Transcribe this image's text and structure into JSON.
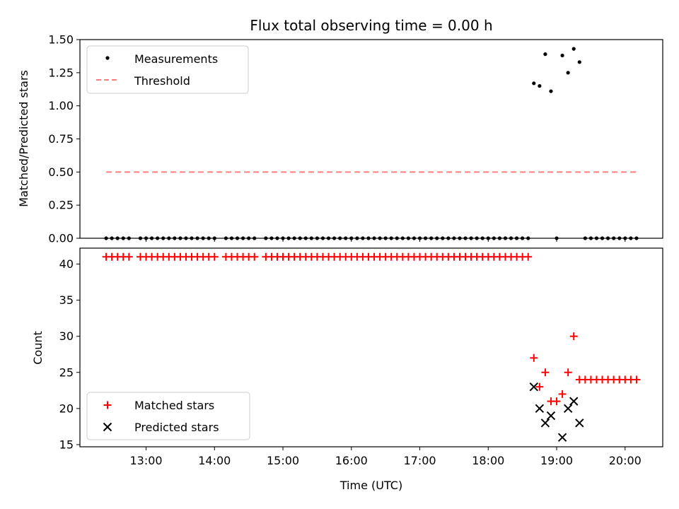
{
  "chart_data": [
    {
      "type": "scatter",
      "title": "Flux total observing time = 0.00 h",
      "xlabel": "",
      "ylabel": "Matched/Predicted stars",
      "ylim": [
        0,
        1.5
      ],
      "yticks": [
        "0.00",
        "0.25",
        "0.50",
        "0.75",
        "1.00",
        "1.25",
        "1.50"
      ],
      "legend_position": "top-left",
      "series": [
        {
          "name": "Measurements",
          "marker": "dot",
          "color": "#000000",
          "x": [
            "12:25",
            "12:30",
            "12:35",
            "12:40",
            "12:45",
            "12:55",
            "13:00",
            "13:05",
            "13:10",
            "13:15",
            "13:20",
            "13:25",
            "13:30",
            "13:35",
            "13:40",
            "13:45",
            "13:50",
            "13:55",
            "14:00",
            "14:10",
            "14:15",
            "14:20",
            "14:25",
            "14:30",
            "14:35",
            "14:45",
            "14:50",
            "14:55",
            "15:00",
            "15:05",
            "15:10",
            "15:15",
            "15:20",
            "15:25",
            "15:30",
            "15:35",
            "15:40",
            "15:45",
            "15:50",
            "15:55",
            "16:00",
            "16:05",
            "16:10",
            "16:15",
            "16:20",
            "16:25",
            "16:30",
            "16:35",
            "16:40",
            "16:45",
            "16:50",
            "16:55",
            "17:00",
            "17:05",
            "17:10",
            "17:15",
            "17:20",
            "17:25",
            "17:30",
            "17:35",
            "17:40",
            "17:45",
            "17:50",
            "17:55",
            "18:00",
            "18:05",
            "18:10",
            "18:15",
            "18:20",
            "18:25",
            "18:30",
            "18:35",
            "18:40",
            "18:45",
            "18:50",
            "18:55",
            "19:00",
            "19:05",
            "19:10",
            "19:15",
            "19:20",
            "19:25",
            "19:30",
            "19:35",
            "19:40",
            "19:45",
            "19:50",
            "19:55",
            "20:00",
            "20:05",
            "20:10"
          ],
          "y": [
            0,
            0,
            0,
            0,
            0,
            0,
            0,
            0,
            0,
            0,
            0,
            0,
            0,
            0,
            0,
            0,
            0,
            0,
            0,
            0,
            0,
            0,
            0,
            0,
            0,
            0,
            0,
            0,
            0,
            0,
            0,
            0,
            0,
            0,
            0,
            0,
            0,
            0,
            0,
            0,
            0,
            0,
            0,
            0,
            0,
            0,
            0,
            0,
            0,
            0,
            0,
            0,
            0,
            0,
            0,
            0,
            0,
            0,
            0,
            0,
            0,
            0,
            0,
            0,
            0,
            0,
            0,
            0,
            0,
            0,
            0,
            0,
            1.17,
            1.15,
            1.39,
            1.11,
            0,
            1.38,
            1.25,
            1.43,
            1.33,
            0,
            0,
            0,
            0,
            0,
            0,
            0,
            0,
            0,
            0
          ]
        },
        {
          "name": "Threshold",
          "marker": "dashed-line",
          "color": "#ff7f7f",
          "x": [
            "12:25",
            "20:10"
          ],
          "y": [
            0.5,
            0.5
          ]
        }
      ]
    },
    {
      "type": "scatter",
      "title": "",
      "xlabel": "Time (UTC)",
      "ylabel": "Count",
      "ylim": [
        14.7,
        42.2
      ],
      "yticks": [
        "15",
        "20",
        "25",
        "30",
        "35",
        "40"
      ],
      "xticks": [
        "13:00",
        "14:00",
        "15:00",
        "16:00",
        "17:00",
        "18:00",
        "19:00",
        "20:00"
      ],
      "xlim": [
        "12:02",
        "20:33"
      ],
      "legend_position": "bottom-left",
      "series": [
        {
          "name": "Matched stars",
          "marker": "plus",
          "color": "#ff0000",
          "x": [
            "12:25",
            "12:30",
            "12:35",
            "12:40",
            "12:45",
            "12:55",
            "13:00",
            "13:05",
            "13:10",
            "13:15",
            "13:20",
            "13:25",
            "13:30",
            "13:35",
            "13:40",
            "13:45",
            "13:50",
            "13:55",
            "14:00",
            "14:10",
            "14:15",
            "14:20",
            "14:25",
            "14:30",
            "14:35",
            "14:45",
            "14:50",
            "14:55",
            "15:00",
            "15:05",
            "15:10",
            "15:15",
            "15:20",
            "15:25",
            "15:30",
            "15:35",
            "15:40",
            "15:45",
            "15:50",
            "15:55",
            "16:00",
            "16:05",
            "16:10",
            "16:15",
            "16:20",
            "16:25",
            "16:30",
            "16:35",
            "16:40",
            "16:45",
            "16:50",
            "16:55",
            "17:00",
            "17:05",
            "17:10",
            "17:15",
            "17:20",
            "17:25",
            "17:30",
            "17:35",
            "17:40",
            "17:45",
            "17:50",
            "17:55",
            "18:00",
            "18:05",
            "18:10",
            "18:15",
            "18:20",
            "18:25",
            "18:30",
            "18:35",
            "18:40",
            "18:45",
            "18:50",
            "18:55",
            "19:00",
            "19:05",
            "19:10",
            "19:15",
            "19:20",
            "19:25",
            "19:30",
            "19:35",
            "19:40",
            "19:45",
            "19:50",
            "19:55",
            "20:00",
            "20:05",
            "20:10"
          ],
          "y": [
            41,
            41,
            41,
            41,
            41,
            41,
            41,
            41,
            41,
            41,
            41,
            41,
            41,
            41,
            41,
            41,
            41,
            41,
            41,
            41,
            41,
            41,
            41,
            41,
            41,
            41,
            41,
            41,
            41,
            41,
            41,
            41,
            41,
            41,
            41,
            41,
            41,
            41,
            41,
            41,
            41,
            41,
            41,
            41,
            41,
            41,
            41,
            41,
            41,
            41,
            41,
            41,
            41,
            41,
            41,
            41,
            41,
            41,
            41,
            41,
            41,
            41,
            41,
            41,
            41,
            41,
            41,
            41,
            41,
            41,
            41,
            41,
            27,
            23,
            25,
            21,
            21,
            22,
            25,
            30,
            24,
            24,
            24,
            24,
            24,
            24,
            24,
            24,
            24,
            24,
            24
          ]
        },
        {
          "name": "Predicted stars",
          "marker": "x",
          "color": "#000000",
          "x": [
            "18:40",
            "18:45",
            "18:50",
            "18:55",
            "19:05",
            "19:10",
            "19:15",
            "19:20"
          ],
          "y": [
            23,
            20,
            18,
            19,
            16,
            20,
            21,
            18
          ]
        }
      ]
    }
  ]
}
